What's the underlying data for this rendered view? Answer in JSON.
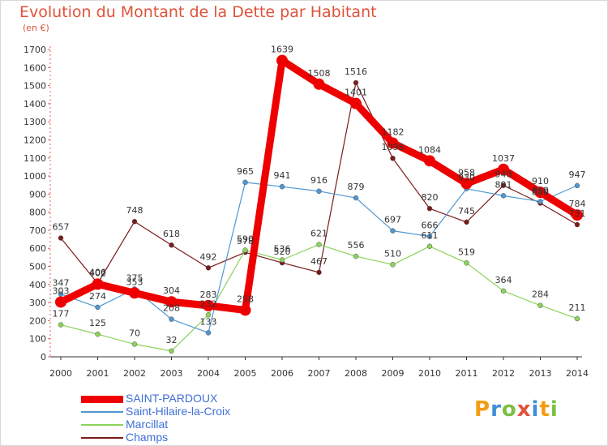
{
  "title": "Evolution du Montant de la Dette par Habitant",
  "subtitle": "(en €)",
  "logo": {
    "text": "Proxiti",
    "colors": [
      "#f39c12",
      "#3f8ed6",
      "#7ac043",
      "#e0523a",
      "#3f8ed6",
      "#f39c12",
      "#7ac043"
    ]
  },
  "chart_data": {
    "type": "line",
    "title": "Evolution du Montant de la Dette par Habitant",
    "subtitle": "(en €)",
    "xlabel": "",
    "ylabel": "",
    "x": [
      "2000",
      "2001",
      "2002",
      "2003",
      "2004",
      "2005",
      "2006",
      "2007",
      "2008",
      "2009",
      "2010",
      "2011",
      "2012",
      "2013",
      "2014"
    ],
    "ylim": [
      0,
      1700
    ],
    "yticks": [
      "0",
      "100",
      "200",
      "300",
      "400",
      "500",
      "600",
      "700",
      "800",
      "900",
      "1000",
      "1100",
      "1200",
      "1300",
      "1400",
      "1500",
      "1600",
      "1700"
    ],
    "grid": false,
    "legend_position": "bottom-left",
    "series": [
      {
        "name": "Champs",
        "color": "#7b1a1a",
        "values": [
          657,
          406,
          748,
          618,
          492,
          578,
          520,
          467,
          1516,
          1098,
          820,
          745,
          948,
          850,
          731
        ]
      },
      {
        "name": "Marcillat",
        "color": "#8bd35b",
        "values": [
          177,
          125,
          70,
          32,
          232,
          590,
          536,
          621,
          556,
          510,
          611,
          519,
          364,
          284,
          211
        ]
      },
      {
        "name": "Saint-Hilaire-la-Croix",
        "color": "#4f97d1",
        "values": [
          347,
          274,
          375,
          208,
          133,
          965,
          941,
          916,
          879,
          697,
          666,
          930,
          891,
          859,
          947
        ]
      },
      {
        "name": "SAINT-PARDOUX",
        "color": "#ee0000",
        "values": [
          303,
          402,
          353,
          304,
          283,
          258,
          1639,
          1508,
          1401,
          1182,
          1084,
          958,
          1037,
          910,
          784
        ]
      }
    ]
  }
}
